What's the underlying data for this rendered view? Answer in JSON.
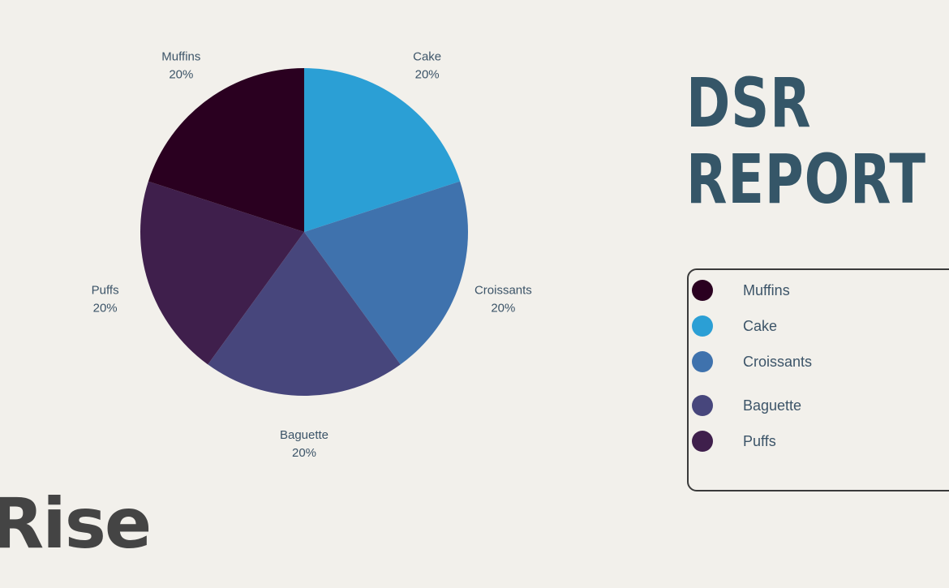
{
  "title_lines": [
    "DSR",
    "REPORT"
  ],
  "brand": "Rise",
  "chart_data": {
    "type": "pie",
    "title": "",
    "slices": [
      {
        "label": "Cake",
        "value": 20,
        "value_label": "20%",
        "color": "#2b9fd5"
      },
      {
        "label": "Croissants",
        "value": 20,
        "value_label": "20%",
        "color": "#3f72ad"
      },
      {
        "label": "Baguette",
        "value": 20,
        "value_label": "20%",
        "color": "#47467c"
      },
      {
        "label": "Puffs",
        "value": 20,
        "value_label": "20%",
        "color": "#3f1f4c"
      },
      {
        "label": "Muffins",
        "value": 20,
        "value_label": "20%",
        "color": "#2a0020"
      }
    ],
    "start_angle_deg": 0,
    "direction": "clockwise",
    "legend": {
      "placement": "right",
      "items": [
        {
          "label": "Muffins",
          "color": "#2a0020"
        },
        {
          "label": "Cake",
          "color": "#2b9fd5"
        },
        {
          "label": "Croissants",
          "color": "#3f72ad"
        },
        {
          "label": "Baguette",
          "color": "#47467c"
        },
        {
          "label": "Puffs",
          "color": "#3f1f4c"
        }
      ]
    }
  }
}
